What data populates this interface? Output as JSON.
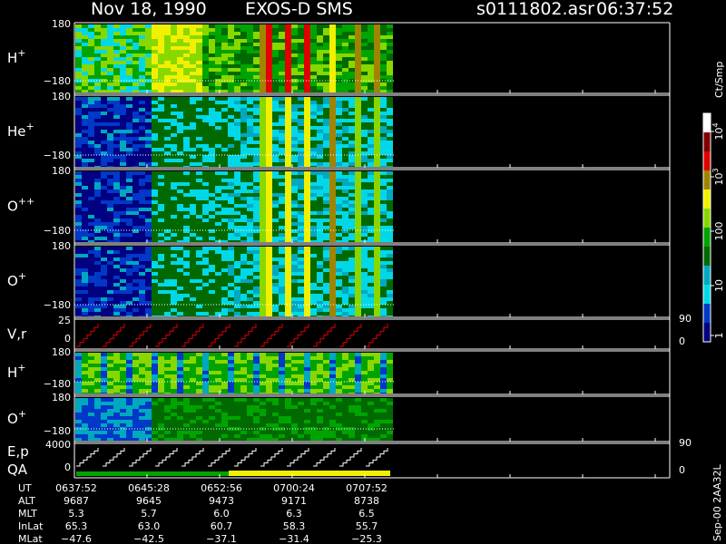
{
  "header": {
    "date": "Nov 18, 1990",
    "instrument": "EXOS-D SMS",
    "file": "s0111802.asr",
    "time": "06:37:52"
  },
  "panels": [
    {
      "label": "H",
      "sup": "+",
      "top": "180",
      "bottom": "−180"
    },
    {
      "label": "He",
      "sup": "+",
      "top": "180",
      "bottom": "−180"
    },
    {
      "label": "O",
      "sup": "++",
      "top": "180",
      "bottom": "−180"
    },
    {
      "label": "O",
      "sup": "+",
      "top": "180",
      "bottom": "−180"
    },
    {
      "label": "V,r",
      "top": "25",
      "bottom": "0",
      "right_top": "90",
      "right_bottom": "0"
    },
    {
      "label": "H",
      "sup": "+",
      "top": "180",
      "bottom": "−180"
    },
    {
      "label": "O",
      "sup": "+",
      "top": "180",
      "bottom": "−180"
    },
    {
      "label": "E,p",
      "label2": "QA",
      "top": "4000",
      "bottom": "0",
      "right_top": "90",
      "right_bottom": "0"
    }
  ],
  "colorbar": {
    "title": "Ct/Smp",
    "labels": [
      {
        "base": "10",
        "sup": "4"
      },
      {
        "base": "10",
        "sup": "3"
      },
      {
        "base": "100"
      },
      {
        "base": "10"
      },
      {
        "base": "1"
      }
    ]
  },
  "table": {
    "rows": [
      {
        "label": "UT",
        "values": [
          "0637:52",
          "0645:28",
          "0652:56",
          "0700:24",
          "0707:52"
        ]
      },
      {
        "label": "ALT",
        "values": [
          "9687",
          "9645",
          "9473",
          "9171",
          "8738"
        ]
      },
      {
        "label": "MLT",
        "values": [
          "5.3",
          "5.7",
          "6.0",
          "6.3",
          "6.5"
        ]
      },
      {
        "label": "InLat",
        "values": [
          "65.3",
          "63.0",
          "60.7",
          "58.3",
          "55.7"
        ]
      },
      {
        "label": "MLat",
        "values": [
          "−47.6",
          "−42.5",
          "−37.1",
          "−31.4",
          "−25.3"
        ]
      }
    ]
  },
  "footer": "Sep-00 2AA32L"
}
